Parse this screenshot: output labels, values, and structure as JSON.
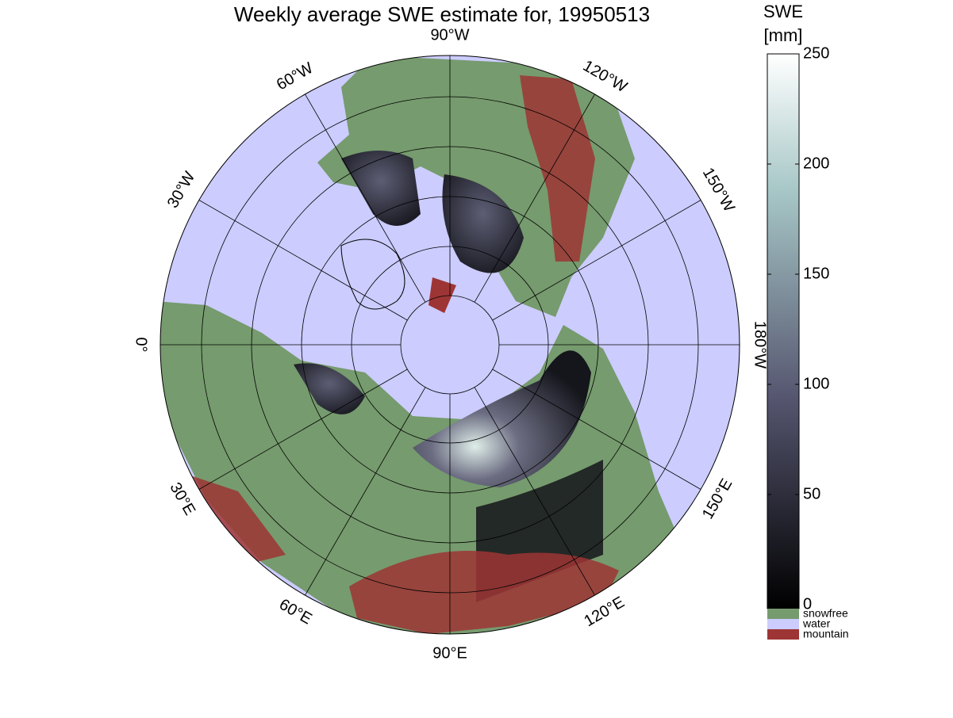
{
  "title": "Weekly average SWE estimate for, 19950513",
  "map": {
    "longitude_labels": [
      "90°W",
      "120°W",
      "150°W",
      "180°W",
      "150°E",
      "120°E",
      "90°E",
      "60°E",
      "30°E",
      "0°",
      "30°W",
      "60°W"
    ]
  },
  "colorbar": {
    "title": [
      "SWE",
      "[mm]"
    ],
    "lim": [
      0,
      250
    ],
    "ticks": [
      0,
      50,
      100,
      150,
      200,
      250
    ],
    "classes": [
      {
        "name": "snowfree",
        "color": "#769b6e"
      },
      {
        "name": "water",
        "color": "#ccccff"
      },
      {
        "name": "mountain",
        "color": "#9e3535"
      }
    ]
  }
}
